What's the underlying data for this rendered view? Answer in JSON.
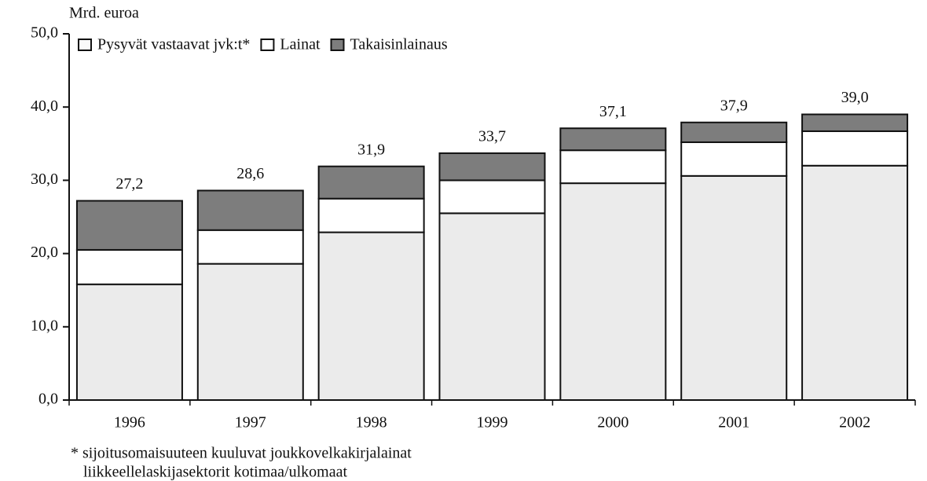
{
  "chart_data": {
    "type": "stacked_bar",
    "y_label": "Mrd. euroa",
    "categories": [
      "1996",
      "1997",
      "1998",
      "1999",
      "2000",
      "2001",
      "2002"
    ],
    "series": [
      {
        "name": "Pysyvät vastaavat jvk:t*",
        "color": "#ebebeb",
        "values": [
          15.8,
          18.6,
          22.9,
          25.5,
          29.6,
          30.6,
          32.0
        ]
      },
      {
        "name": "Lainat",
        "color": "#ffffff",
        "values": [
          4.7,
          4.6,
          4.6,
          4.5,
          4.5,
          4.6,
          4.7
        ]
      },
      {
        "name": "Takaisinlainaus",
        "color": "#7d7d7d",
        "values": [
          6.7,
          5.4,
          4.4,
          3.7,
          3.0,
          2.7,
          2.3
        ]
      }
    ],
    "totals": {
      "values": [
        27.2,
        28.6,
        31.9,
        33.7,
        37.1,
        37.9,
        39.0
      ],
      "value_labels": [
        "27,2",
        "28,6",
        "31,9",
        "33,7",
        "37,1",
        "37,9",
        "39,0"
      ]
    },
    "ylim": [
      0,
      50
    ],
    "yticks": [
      {
        "value": 0,
        "label": "0,0"
      },
      {
        "value": 10,
        "label": "10,0"
      },
      {
        "value": 20,
        "label": "20,0"
      },
      {
        "value": 30,
        "label": "30,0"
      },
      {
        "value": 40,
        "label": "40,0"
      },
      {
        "value": 50,
        "label": "50,0"
      }
    ],
    "footnotes": [
      "*  sijoitusomaisuuteen kuuluvat joukkovelkakirjalainat",
      "liikkeellelaskijasektorit kotimaa/ulkomaat"
    ]
  }
}
